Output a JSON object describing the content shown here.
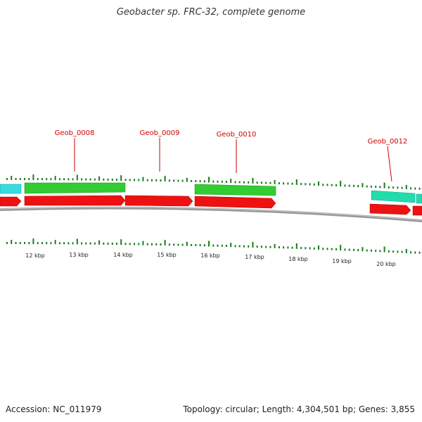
{
  "title": "Geobacter sp. FRC-32, complete genome",
  "footer": {
    "accession": "Accession: NC_011979",
    "summary": "Topology: circular; Length: 4,304,501 bp; Genes: 3,855"
  },
  "colors": {
    "cds_forward_light": "#33dddd",
    "cds_forward_green": "#33cc33",
    "cds_forward_teal": "#22ddaa",
    "cds_reverse_red": "#ee1111",
    "backbone": "#888888",
    "ticks": "#1a7a1a",
    "gene_label": "#cc0000"
  },
  "map": {
    "scale_labels": [
      {
        "text": "12 kbp"
      },
      {
        "text": "13 kbp"
      },
      {
        "text": "14 kbp"
      },
      {
        "text": "15 kbp"
      },
      {
        "text": "16 kbp"
      },
      {
        "text": "17 kbp"
      },
      {
        "text": "18 kbp"
      },
      {
        "text": "19 kbp"
      },
      {
        "text": "20 kbp"
      }
    ],
    "gene_labels": [
      {
        "text": "Geob_0008"
      },
      {
        "text": "Geob_0009"
      },
      {
        "text": "Geob_0010"
      },
      {
        "text": "Geob_0012"
      }
    ]
  }
}
